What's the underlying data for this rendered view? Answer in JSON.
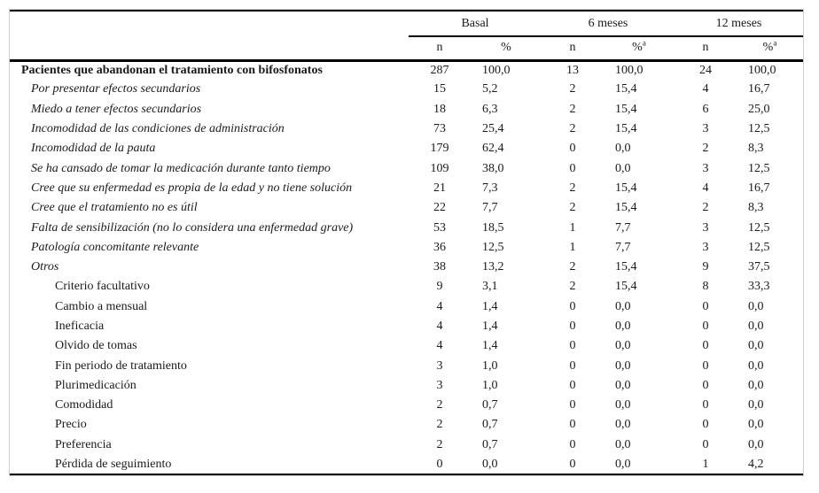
{
  "table": {
    "colors": {
      "rule": "#000000",
      "border_light": "#cfcfcf",
      "text": "#1a1a1a",
      "background": "#ffffff"
    },
    "groups": [
      {
        "label": "Basal"
      },
      {
        "label": "6 meses"
      },
      {
        "label": "12 meses"
      }
    ],
    "columns": [
      {
        "label": "n",
        "sup": "",
        "type": "num"
      },
      {
        "label": "%",
        "sup": "",
        "type": "pct"
      },
      {
        "label": "n",
        "sup": "",
        "type": "num"
      },
      {
        "label": "%",
        "sup": "a",
        "type": "pct"
      },
      {
        "label": "n",
        "sup": "",
        "type": "num"
      },
      {
        "label": "%",
        "sup": "a",
        "type": "pct"
      }
    ],
    "rows": [
      {
        "label": "Pacientes que abandonan el tratamiento con bifosfonatos",
        "level": 0,
        "values": [
          "287",
          "100,0",
          "13",
          "100,0",
          "24",
          "100,0"
        ]
      },
      {
        "label": "Por presentar efectos secundarios",
        "level": 1,
        "values": [
          "15",
          "5,2",
          "2",
          "15,4",
          "4",
          "16,7"
        ]
      },
      {
        "label": "Miedo a tener efectos secundarios",
        "level": 1,
        "values": [
          "18",
          "6,3",
          "2",
          "15,4",
          "6",
          "25,0"
        ]
      },
      {
        "label": "Incomodidad de las condiciones de administración",
        "level": 1,
        "values": [
          "73",
          "25,4",
          "2",
          "15,4",
          "3",
          "12,5"
        ]
      },
      {
        "label": "Incomodidad de la pauta",
        "level": 1,
        "values": [
          "179",
          "62,4",
          "0",
          "0,0",
          "2",
          "8,3"
        ]
      },
      {
        "label": "Se ha cansado de tomar la medicación durante tanto tiempo",
        "level": 1,
        "values": [
          "109",
          "38,0",
          "0",
          "0,0",
          "3",
          "12,5"
        ]
      },
      {
        "label": "Cree que su enfermedad es propia de la edad y no tiene solución",
        "level": 1,
        "values": [
          "21",
          "7,3",
          "2",
          "15,4",
          "4",
          "16,7"
        ]
      },
      {
        "label": "Cree que el tratamiento no es útil",
        "level": 1,
        "values": [
          "22",
          "7,7",
          "2",
          "15,4",
          "2",
          "8,3"
        ]
      },
      {
        "label": "Falta de sensibilización (no lo considera una enfermedad grave)",
        "level": 1,
        "values": [
          "53",
          "18,5",
          "1",
          "7,7",
          "3",
          "12,5"
        ]
      },
      {
        "label": "Patología concomitante relevante",
        "level": 1,
        "values": [
          "36",
          "12,5",
          "1",
          "7,7",
          "3",
          "12,5"
        ]
      },
      {
        "label": "Otros",
        "level": 1,
        "values": [
          "38",
          "13,2",
          "2",
          "15,4",
          "9",
          "37,5"
        ]
      },
      {
        "label": "Criterio facultativo",
        "level": 2,
        "values": [
          "9",
          "3,1",
          "2",
          "15,4",
          "8",
          "33,3"
        ]
      },
      {
        "label": "Cambio a mensual",
        "level": 2,
        "values": [
          "4",
          "1,4",
          "0",
          "0,0",
          "0",
          "0,0"
        ]
      },
      {
        "label": "Ineficacia",
        "level": 2,
        "values": [
          "4",
          "1,4",
          "0",
          "0,0",
          "0",
          "0,0"
        ]
      },
      {
        "label": "Olvido de tomas",
        "level": 2,
        "values": [
          "4",
          "1,4",
          "0",
          "0,0",
          "0",
          "0,0"
        ]
      },
      {
        "label": "Fin periodo de tratamiento",
        "level": 2,
        "values": [
          "3",
          "1,0",
          "0",
          "0,0",
          "0",
          "0,0"
        ]
      },
      {
        "label": "Plurimedicación",
        "level": 2,
        "values": [
          "3",
          "1,0",
          "0",
          "0,0",
          "0",
          "0,0"
        ]
      },
      {
        "label": "Comodidad",
        "level": 2,
        "values": [
          "2",
          "0,7",
          "0",
          "0,0",
          "0",
          "0,0"
        ]
      },
      {
        "label": "Precio",
        "level": 2,
        "values": [
          "2",
          "0,7",
          "0",
          "0,0",
          "0",
          "0,0"
        ]
      },
      {
        "label": "Preferencia",
        "level": 2,
        "values": [
          "2",
          "0,7",
          "0",
          "0,0",
          "0",
          "0,0"
        ]
      },
      {
        "label": "Pérdida de seguimiento",
        "level": 2,
        "values": [
          "0",
          "0,0",
          "0",
          "0,0",
          "1",
          "4,2"
        ]
      }
    ]
  }
}
